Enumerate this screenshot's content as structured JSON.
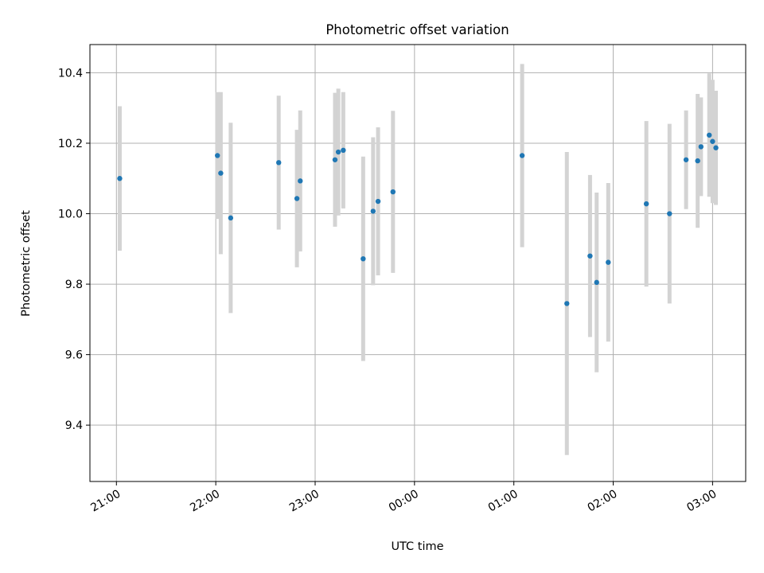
{
  "chart_data": {
    "type": "scatter",
    "title": "Photometric offset variation",
    "xlabel": "UTC time",
    "ylabel": "Photometric offset",
    "xlim": [
      "2024-01-01T20:44",
      "2024-01-02T03:20"
    ],
    "ylim": [
      9.24,
      10.48
    ],
    "grid": true,
    "x_ticks": [
      {
        "t": "2024-01-01T21:00",
        "label": "21:00"
      },
      {
        "t": "2024-01-01T22:00",
        "label": "22:00"
      },
      {
        "t": "2024-01-01T23:00",
        "label": "23:00"
      },
      {
        "t": "2024-01-02T00:00",
        "label": "00:00"
      },
      {
        "t": "2024-01-02T01:00",
        "label": "01:00"
      },
      {
        "t": "2024-01-02T02:00",
        "label": "02:00"
      },
      {
        "t": "2024-01-02T03:00",
        "label": "03:00"
      }
    ],
    "y_ticks": [
      9.4,
      9.6,
      9.8,
      10.0,
      10.2,
      10.4
    ],
    "marker_color": "#1f77b4",
    "errorbar_color": "#d3d3d3",
    "points": [
      {
        "t": "2024-01-01T21:02",
        "y": 10.1,
        "err": 0.205
      },
      {
        "t": "2024-01-01T22:01",
        "y": 10.165,
        "err": 0.18
      },
      {
        "t": "2024-01-01T22:03",
        "y": 10.115,
        "err": 0.23
      },
      {
        "t": "2024-01-01T22:09",
        "y": 9.988,
        "err": 0.27
      },
      {
        "t": "2024-01-01T22:38",
        "y": 10.145,
        "err": 0.19
      },
      {
        "t": "2024-01-01T22:49",
        "y": 10.043,
        "err": 0.195
      },
      {
        "t": "2024-01-01T22:51",
        "y": 10.093,
        "err": 0.2
      },
      {
        "t": "2024-01-01T23:12",
        "y": 10.153,
        "err": 0.19
      },
      {
        "t": "2024-01-01T23:14",
        "y": 10.175,
        "err": 0.18
      },
      {
        "t": "2024-01-01T23:17",
        "y": 10.18,
        "err": 0.165
      },
      {
        "t": "2024-01-01T23:29",
        "y": 9.872,
        "err": 0.29
      },
      {
        "t": "2024-01-01T23:35",
        "y": 10.007,
        "err": 0.21
      },
      {
        "t": "2024-01-01T23:38",
        "y": 10.035,
        "err": 0.21
      },
      {
        "t": "2024-01-01T23:47",
        "y": 10.062,
        "err": 0.23
      },
      {
        "t": "2024-01-02T01:05",
        "y": 10.165,
        "err": 0.26
      },
      {
        "t": "2024-01-02T01:32",
        "y": 9.745,
        "err": 0.43
      },
      {
        "t": "2024-01-02T01:46",
        "y": 9.88,
        "err": 0.23
      },
      {
        "t": "2024-01-02T01:50",
        "y": 9.805,
        "err": 0.255
      },
      {
        "t": "2024-01-02T01:57",
        "y": 9.862,
        "err": 0.225
      },
      {
        "t": "2024-01-02T02:20",
        "y": 10.028,
        "err": 0.235
      },
      {
        "t": "2024-01-02T02:34",
        "y": 10.0,
        "err": 0.255
      },
      {
        "t": "2024-01-02T02:44",
        "y": 10.153,
        "err": 0.14
      },
      {
        "t": "2024-01-02T02:51",
        "y": 10.15,
        "err": 0.19
      },
      {
        "t": "2024-01-02T02:53",
        "y": 10.19,
        "err": 0.14
      },
      {
        "t": "2024-01-02T02:58",
        "y": 10.223,
        "err": 0.175
      },
      {
        "t": "2024-01-02T03:00",
        "y": 10.205,
        "err": 0.175
      },
      {
        "t": "2024-01-02T03:02",
        "y": 10.187,
        "err": 0.162
      }
    ]
  }
}
